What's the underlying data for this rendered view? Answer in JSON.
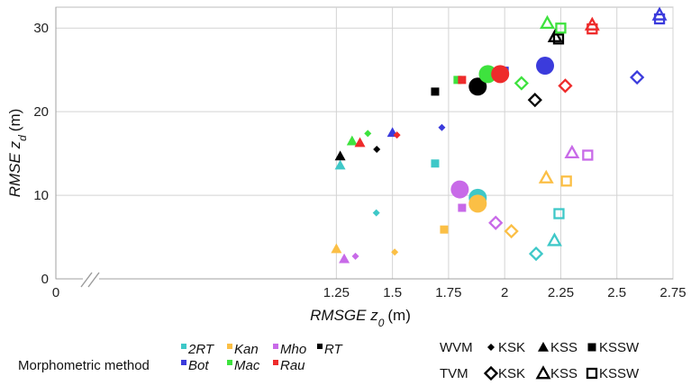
{
  "chart_data": {
    "type": "scatter",
    "xlabel_main": "RMSGE",
    "xlabel_var": "z",
    "xlabel_sub": "0",
    "xlabel_unit": "(m)",
    "ylabel_main": "RMSE",
    "ylabel_var": "z",
    "ylabel_sub": "d",
    "ylabel_unit": "(m)",
    "xlim": [
      0,
      2.75
    ],
    "ylim": [
      0,
      32.5
    ],
    "x_ticks": [
      0,
      1.25,
      1.5,
      1.75,
      2,
      2.25,
      2.5,
      2.75
    ],
    "x_tick_labels": [
      "0",
      "1.25",
      "1.5",
      "1.75",
      "2",
      "2.25",
      "2.5",
      "2.75"
    ],
    "y_ticks": [
      0,
      10,
      20,
      30
    ],
    "y_tick_labels": [
      "0",
      "10",
      "20",
      "30"
    ],
    "grid": true,
    "x_axis_break": true,
    "methods": [
      {
        "key": "2RT",
        "label": "2RT",
        "color": "#3ec8c8"
      },
      {
        "key": "Kan",
        "label": "Kan",
        "color": "#fbbf45"
      },
      {
        "key": "Mho",
        "label": "Mho",
        "color": "#c86ae8"
      },
      {
        "key": "RT",
        "label": "RT",
        "color": "#000000"
      },
      {
        "key": "Bot",
        "label": "Bot",
        "color": "#3b3bdc"
      },
      {
        "key": "Mac",
        "label": "Mac",
        "color": "#3ee23e"
      },
      {
        "key": "Rau",
        "label": "Rau",
        "color": "#ee2b2b"
      }
    ],
    "legend": {
      "method_title": "Morphometric method",
      "wvm_label": "WVM",
      "tvm_label": "TVM",
      "ksk_label": "KSK",
      "kss_label": "KSS",
      "kssw_label": "KSSW"
    },
    "series": [
      {
        "method": "2RT",
        "points": [
          {
            "x": 1.267,
            "y": 13.6,
            "shape": "tri-filled"
          },
          {
            "x": 1.428,
            "y": 7.9,
            "shape": "diamond-filled"
          },
          {
            "x": 1.69,
            "y": 13.8,
            "shape": "square-filled"
          },
          {
            "x": 1.88,
            "y": 9.7,
            "shape": "circle"
          },
          {
            "x": 2.14,
            "y": 3.0,
            "shape": "diamond-open"
          },
          {
            "x": 2.222,
            "y": 4.6,
            "shape": "tri-open"
          },
          {
            "x": 2.242,
            "y": 7.8,
            "shape": "square-open"
          }
        ]
      },
      {
        "method": "Kan",
        "points": [
          {
            "x": 1.25,
            "y": 3.6,
            "shape": "tri-filled"
          },
          {
            "x": 1.51,
            "y": 3.2,
            "shape": "diamond-filled"
          },
          {
            "x": 1.73,
            "y": 5.9,
            "shape": "square-filled"
          },
          {
            "x": 1.88,
            "y": 9.0,
            "shape": "circle"
          },
          {
            "x": 2.03,
            "y": 5.7,
            "shape": "diamond-open"
          },
          {
            "x": 2.185,
            "y": 12.1,
            "shape": "tri-open"
          },
          {
            "x": 2.275,
            "y": 11.7,
            "shape": "square-open"
          }
        ]
      },
      {
        "method": "Mho",
        "points": [
          {
            "x": 1.285,
            "y": 2.4,
            "shape": "tri-filled"
          },
          {
            "x": 1.335,
            "y": 2.7,
            "shape": "diamond-filled"
          },
          {
            "x": 1.81,
            "y": 8.5,
            "shape": "square-filled"
          },
          {
            "x": 1.8,
            "y": 10.7,
            "shape": "circle"
          },
          {
            "x": 1.96,
            "y": 6.7,
            "shape": "diamond-open"
          },
          {
            "x": 2.3,
            "y": 15.1,
            "shape": "tri-open"
          },
          {
            "x": 2.37,
            "y": 14.8,
            "shape": "square-open"
          }
        ]
      },
      {
        "method": "RT",
        "points": [
          {
            "x": 1.267,
            "y": 14.7,
            "shape": "tri-filled"
          },
          {
            "x": 1.43,
            "y": 15.5,
            "shape": "diamond-filled"
          },
          {
            "x": 1.69,
            "y": 22.4,
            "shape": "square-filled"
          },
          {
            "x": 1.88,
            "y": 23.0,
            "shape": "circle"
          },
          {
            "x": 2.135,
            "y": 21.4,
            "shape": "diamond-open"
          },
          {
            "x": 2.225,
            "y": 29.0,
            "shape": "tri-open"
          },
          {
            "x": 2.24,
            "y": 28.7,
            "shape": "square-open"
          }
        ]
      },
      {
        "method": "Bot",
        "points": [
          {
            "x": 1.5,
            "y": 17.5,
            "shape": "tri-filled"
          },
          {
            "x": 1.72,
            "y": 18.1,
            "shape": "diamond-filled"
          },
          {
            "x": 2.0,
            "y": 24.9,
            "shape": "square-filled"
          },
          {
            "x": 2.18,
            "y": 25.5,
            "shape": "circle"
          },
          {
            "x": 2.59,
            "y": 24.1,
            "shape": "diamond-open"
          },
          {
            "x": 2.69,
            "y": 31.6,
            "shape": "tri-open"
          },
          {
            "x": 2.69,
            "y": 31.1,
            "shape": "square-open"
          }
        ]
      },
      {
        "method": "Mac",
        "points": [
          {
            "x": 1.32,
            "y": 16.5,
            "shape": "tri-filled"
          },
          {
            "x": 1.39,
            "y": 17.4,
            "shape": "diamond-filled"
          },
          {
            "x": 1.79,
            "y": 23.8,
            "shape": "square-filled"
          },
          {
            "x": 1.925,
            "y": 24.5,
            "shape": "circle"
          },
          {
            "x": 2.075,
            "y": 23.4,
            "shape": "diamond-open"
          },
          {
            "x": 2.19,
            "y": 30.6,
            "shape": "tri-open"
          },
          {
            "x": 2.25,
            "y": 30.0,
            "shape": "square-open"
          }
        ]
      },
      {
        "method": "Rau",
        "points": [
          {
            "x": 1.355,
            "y": 16.3,
            "shape": "tri-filled"
          },
          {
            "x": 1.52,
            "y": 17.2,
            "shape": "diamond-filled"
          },
          {
            "x": 1.81,
            "y": 23.8,
            "shape": "square-filled"
          },
          {
            "x": 1.98,
            "y": 24.5,
            "shape": "circle"
          },
          {
            "x": 2.27,
            "y": 23.1,
            "shape": "diamond-open"
          },
          {
            "x": 2.39,
            "y": 30.4,
            "shape": "tri-open"
          },
          {
            "x": 2.39,
            "y": 29.9,
            "shape": "square-open"
          }
        ]
      }
    ]
  }
}
